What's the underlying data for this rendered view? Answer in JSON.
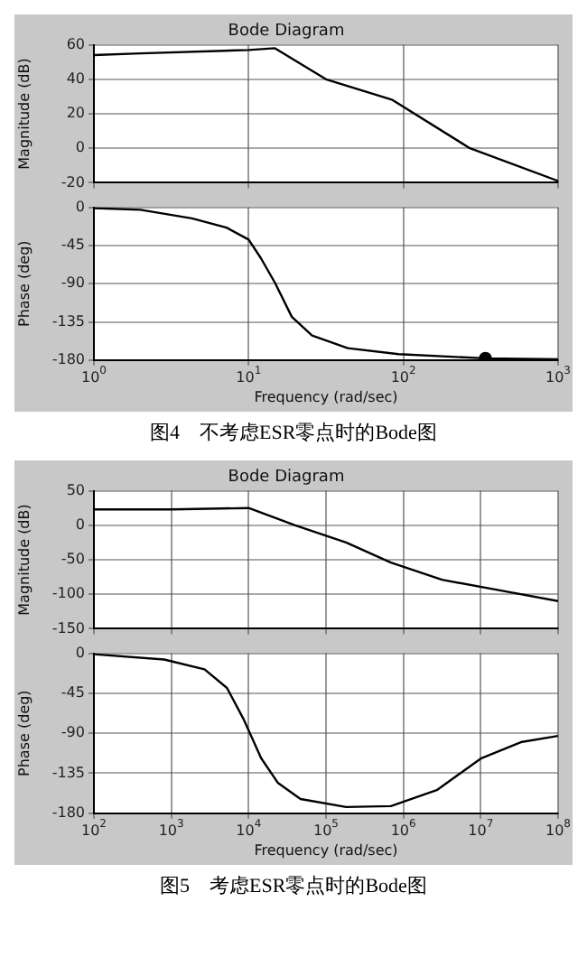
{
  "chart_data": [
    {
      "type": "line",
      "title": "Bode Diagram",
      "ylabel": "Magnitude (dB)",
      "log": "x",
      "grid": true,
      "tick_labels": "y",
      "xlim": [
        1,
        1000
      ],
      "xticks": [
        {
          "value": 1,
          "label": null
        },
        {
          "value": 10,
          "label": null
        },
        {
          "value": 100,
          "label": null
        },
        {
          "value": 1000,
          "label": null
        }
      ],
      "ylim": [
        -20,
        60
      ],
      "yticks": [
        -20,
        0,
        20,
        40,
        60
      ],
      "series": [
        {
          "color": "#000000",
          "x": [
            1,
            2,
            10,
            14.8,
            31.6,
            85,
            269,
            1000
          ],
          "values": [
            54,
            55,
            57,
            58,
            40,
            28,
            0,
            -19
          ]
        }
      ]
    },
    {
      "type": "line",
      "ylabel": "Phase (deg)",
      "xlabel": "Frequency (rad/sec)",
      "log": "x",
      "grid": true,
      "annotations": [
        "图4　不考虑ESR零点时的Bode图"
      ],
      "xlim": [
        1,
        1000
      ],
      "xticks": [
        {
          "value": 1,
          "label": "10$^{0}$"
        },
        {
          "value": 10,
          "label": "10$^{1}$"
        },
        {
          "value": 100,
          "label": "10$^{2}$"
        },
        {
          "value": 1000,
          "label": "10$^{3}$"
        }
      ],
      "ylim": [
        -180,
        0
      ],
      "yticks": [
        -180,
        -135,
        -90,
        -45,
        0
      ],
      "series": [
        {
          "color": "#000000",
          "x": [
            1,
            2,
            4.3,
            7.2,
            10,
            12,
            14.8,
            19,
            25.7,
            43.7,
            93,
            339,
            1000
          ],
          "values": [
            -1,
            -3,
            -13,
            -24,
            -38,
            -60,
            -89,
            -129,
            -151,
            -166,
            -173,
            -178,
            -179
          ]
        },
        {
          "type": "scatter",
          "marker": "circle",
          "color": "#000000",
          "x": [
            339
          ],
          "values": [
            -178
          ]
        }
      ]
    },
    {
      "type": "line",
      "title": "Bode Diagram",
      "ylabel": "Magnitude (dB)",
      "log": "x",
      "grid": true,
      "tick_labels": "y",
      "xlim": [
        100,
        100000000
      ],
      "xticks": [
        {
          "value": 100,
          "label": null
        },
        {
          "value": 1000,
          "label": null
        },
        {
          "value": 10000,
          "label": null
        },
        {
          "value": 100000,
          "label": null
        },
        {
          "value": 1000000,
          "label": null
        },
        {
          "value": 10000000,
          "label": null
        },
        {
          "value": 100000000,
          "label": null
        }
      ],
      "ylim": [
        -150,
        50
      ],
      "yticks": [
        -150,
        -100,
        -50,
        0,
        50
      ],
      "series": [
        {
          "color": "#000000",
          "x": [
            100,
            1000,
            10000,
            40000,
            182000,
            690000,
            3160000,
            17000000,
            100000000
          ],
          "values": [
            23,
            23,
            25,
            0,
            -25,
            -54,
            -79,
            -94,
            -110
          ]
        }
      ]
    },
    {
      "type": "line",
      "ylabel": "Phase (deg)",
      "xlabel": "Frequency (rad/sec)",
      "log": "x",
      "grid": true,
      "annotations": [
        "图5　考虑ESR零点时的Bode图"
      ],
      "xlim": [
        100,
        100000000
      ],
      "xticks": [
        {
          "value": 100,
          "label": "10$^{2}$"
        },
        {
          "value": 1000,
          "label": "10$^{3}$"
        },
        {
          "value": 10000,
          "label": "10$^{4}$"
        },
        {
          "value": 100000,
          "label": "10$^{5}$"
        },
        {
          "value": 1000000,
          "label": "10$^{6}$"
        },
        {
          "value": 10000000,
          "label": "10$^{7}$"
        },
        {
          "value": 100000000,
          "label": "10$^{8}$"
        }
      ],
      "ylim": [
        -180,
        0
      ],
      "yticks": [
        -180,
        -135,
        -90,
        -45,
        0
      ],
      "series": [
        {
          "color": "#000000",
          "x": [
            100,
            810,
            2690,
            5250,
            8700,
            14500,
            24000,
            46800,
            182000,
            690000,
            2700000,
            10200000,
            33000000,
            100000000
          ],
          "values": [
            -1,
            -7,
            -18,
            -39,
            -75,
            -118,
            -146,
            -164,
            -173,
            -172,
            -154,
            -118,
            -100,
            -93
          ]
        }
      ]
    }
  ]
}
